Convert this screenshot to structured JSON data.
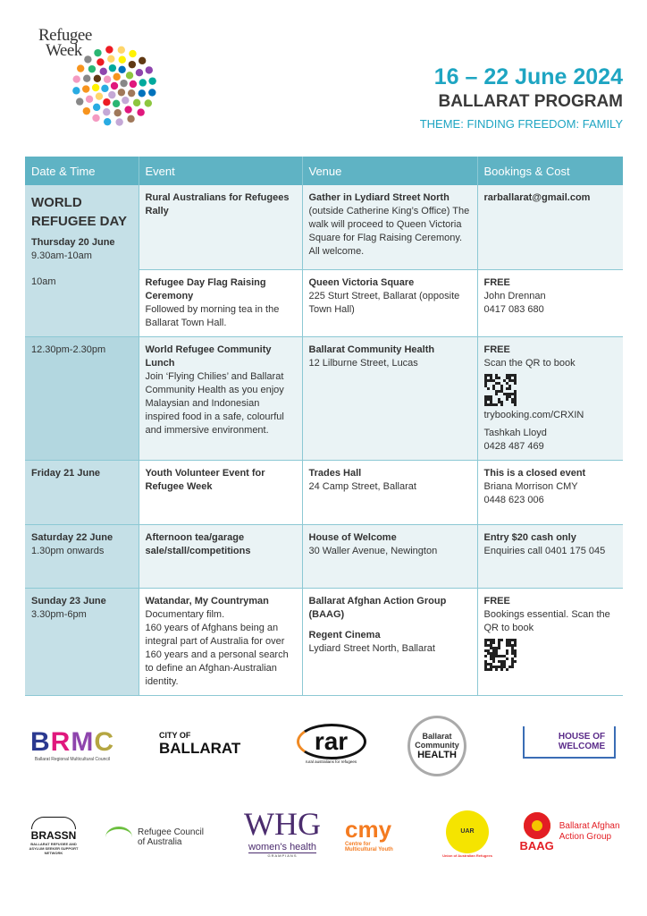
{
  "branding": {
    "logo_line1": "Refugee",
    "logo_line2": "Week"
  },
  "header": {
    "dates": "16 – 22 June 2024",
    "program": "BALLARAT PROGRAM",
    "theme": "THEME: FINDING FREEDOM: FAMILY"
  },
  "colors": {
    "accent": "#1ea5c2",
    "table_header": "#5fb3c4",
    "date_column": "#c5e0e7"
  },
  "table": {
    "headers": [
      "Date & Time",
      "Event",
      "Venue",
      "Bookings & Cost"
    ],
    "rows": [
      {
        "day_title": "WORLD REFUGEE DAY",
        "date": "Thursday 20 June",
        "time": "9.30am-10am",
        "event_title": "Rural Australians for Refugees Rally",
        "venue_title": "Gather in Lydiard Street North",
        "venue_text": "(outside Catherine King’s Office) The walk will proceed to Queen Victoria Square for Flag Raising Ceremony. All welcome.",
        "booking_title": "rarballarat@gmail.com"
      },
      {
        "time": "10am",
        "event_title": "Refugee Day Flag Raising Ceremony",
        "event_text": "Followed by morning tea in the Ballarat Town Hall.",
        "venue_title": "Queen Victoria Square",
        "venue_text": "225 Sturt Street, Ballarat (opposite Town Hall)",
        "booking_title": "FREE",
        "booking_line1": "John Drennan",
        "booking_line2": "0417 083 680"
      },
      {
        "time": "12.30pm-2.30pm",
        "event_title": "World Refugee Community Lunch",
        "event_text": "Join ‘Flying Chilies’ and Ballarat Community Health as you enjoy Malaysian and Indonesian inspired food in a safe, colourful and immersive environment.",
        "venue_title": "Ballarat Community Health",
        "venue_text": "12 Lilburne Street, Lucas",
        "booking_title": "FREE",
        "booking_line1": "Scan the QR to book",
        "booking_link": "trybooking.com/CRXIN",
        "booking_line2": "Tashkah Lloyd",
        "booking_line3": "0428 487 469"
      },
      {
        "date": "Friday 21 June",
        "event_title": "Youth Volunteer Event for Refugee Week",
        "venue_title": "Trades Hall",
        "venue_text": "24 Camp Street, Ballarat",
        "booking_title": "This is a closed event",
        "booking_line1": "Briana Morrison CMY",
        "booking_line2": "0448 623 006"
      },
      {
        "date": "Saturday 22 June",
        "time": "1.30pm onwards",
        "event_title": "Afternoon tea/garage sale/stall/competitions",
        "venue_title": "House of Welcome",
        "venue_text": "30 Waller Avenue, Newington",
        "booking_title": "Entry $20 cash only",
        "booking_line1": "Enquiries call 0401 175 045"
      },
      {
        "date": "Sunday 23 June",
        "time": "3.30pm-6pm",
        "event_title": "Watandar, My Countryman",
        "event_text": "Documentary film.",
        "event_text2": "160 years of Afghans being an integral part of Australia for over 160 years and a personal search to define an Afghan-Australian identity.",
        "venue_title": "Ballarat Afghan Action Group (BAAG)",
        "venue_title2": "Regent Cinema",
        "venue_text": "Lydiard Street North, Ballarat",
        "booking_title": "FREE",
        "booking_line1": "Bookings essential. Scan the QR to book"
      }
    ]
  },
  "sponsors": {
    "brmc": {
      "mark": "BRMC",
      "name": "Ballarat Regional Multicultural Council"
    },
    "ballarat": {
      "line1": "CITY OF",
      "line2": "BALLARAT"
    },
    "rar": {
      "mark": "rar",
      "name": "rural australians for refugees"
    },
    "bch": {
      "line1": "Ballarat",
      "line2": "Community",
      "line3": "HEALTH"
    },
    "how": {
      "line1": "HOUSE OF",
      "line2": "WELCOME"
    },
    "brassn": {
      "mark": "BRASSN",
      "name": "BALLARAT REFUGEE AND ASYLUM SEEKER SUPPORT NETWORK"
    },
    "rca": {
      "line1": "Refugee Council",
      "line2": "of Australia"
    },
    "whg": {
      "mark": "WHG",
      "name": "women's health",
      "sub": "GRAMPIANS"
    },
    "cmy": {
      "mark": "cmy",
      "line1": "Centre for",
      "line2": "Multicultural Youth"
    },
    "uar": {
      "mark": "UAR",
      "name": "Union of Australian Refugees"
    },
    "baag": {
      "mark": "BAAG",
      "line1": "Ballarat Afghan",
      "line2": "Action Group"
    }
  }
}
